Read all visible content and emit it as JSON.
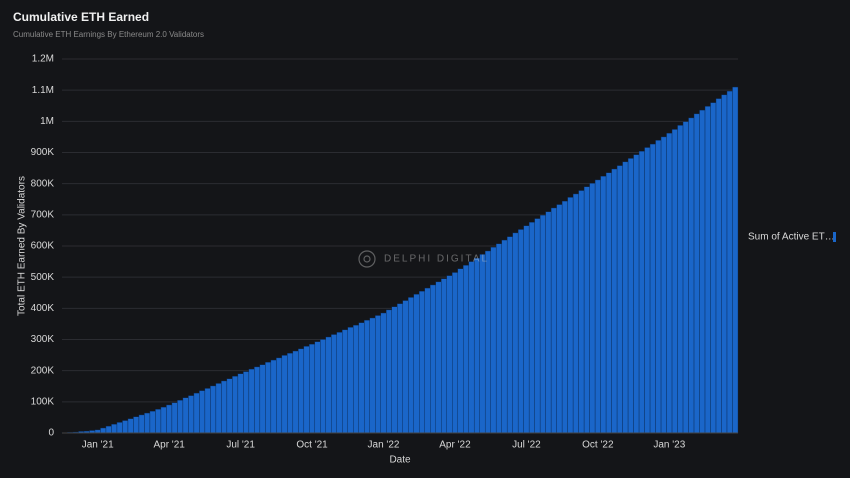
{
  "chart_data": {
    "type": "bar",
    "title": "Cumulative ETH Earned",
    "subtitle": "Cumulative ETH Earnings By Ethereum 2.0 Validators",
    "x_label": "Date",
    "y_label": "Total ETH Earned By Validators",
    "watermark": "DELPHI DIGITAL",
    "categories": [
      null,
      null,
      null,
      null,
      null,
      null,
      "Jan '21",
      null,
      null,
      null,
      null,
      null,
      null,
      null,
      null,
      null,
      null,
      null,
      null,
      "Apr '21",
      null,
      null,
      null,
      null,
      null,
      null,
      null,
      null,
      null,
      null,
      null,
      null,
      "Jul '21",
      null,
      null,
      null,
      null,
      null,
      null,
      null,
      null,
      null,
      null,
      null,
      null,
      "Oct '21",
      null,
      null,
      null,
      null,
      null,
      null,
      null,
      null,
      null,
      null,
      null,
      null,
      "Jan '22",
      null,
      null,
      null,
      null,
      null,
      null,
      null,
      null,
      null,
      null,
      null,
      null,
      "Apr '22",
      null,
      null,
      null,
      null,
      null,
      null,
      null,
      null,
      null,
      null,
      null,
      null,
      "Jul '22",
      null,
      null,
      null,
      null,
      null,
      null,
      null,
      null,
      null,
      null,
      null,
      null,
      "Oct '22",
      null,
      null,
      null,
      null,
      null,
      null,
      null,
      null,
      null,
      null,
      null,
      null,
      "Jan '23",
      null,
      null,
      null,
      null,
      null,
      null,
      null,
      null,
      null,
      null,
      null,
      null
    ],
    "series": [
      {
        "name": "Sum of Active ET…",
        "color": "#1a66c9",
        "values": [
          1000,
          2000,
          3000,
          5000,
          6000,
          8000,
          10000,
          16000,
          22000,
          28000,
          34000,
          40000,
          46000,
          52000,
          58000,
          64000,
          70000,
          76000,
          83000,
          90000,
          97000,
          105000,
          113000,
          120000,
          128000,
          136000,
          143000,
          151000,
          159000,
          167000,
          174000,
          182000,
          190000,
          197000,
          205000,
          212000,
          219000,
          227000,
          234000,
          241000,
          249000,
          256000,
          263000,
          270000,
          278000,
          285000,
          293000,
          300000,
          308000,
          316000,
          323000,
          331000,
          339000,
          346000,
          354000,
          362000,
          369000,
          377000,
          385000,
          395000,
          405000,
          415000,
          425000,
          435000,
          445000,
          455000,
          465000,
          475000,
          485000,
          495000,
          505000,
          515000,
          527000,
          538000,
          550000,
          561000,
          573000,
          584000,
          596000,
          607000,
          619000,
          630000,
          642000,
          653000,
          665000,
          676000,
          688000,
          699000,
          710000,
          722000,
          733000,
          744000,
          756000,
          767000,
          778000,
          790000,
          801000,
          812000,
          824000,
          835000,
          847000,
          858000,
          870000,
          881000,
          893000,
          904000,
          916000,
          927000,
          939000,
          950000,
          962000,
          974000,
          987000,
          999000,
          1011000,
          1024000,
          1036000,
          1048000,
          1060000,
          1073000,
          1085000,
          1097000,
          1110000
        ]
      }
    ],
    "ylim": [
      0,
      1200000
    ],
    "yticks": [
      0,
      {
        "value": 100000,
        "label": "100K"
      },
      {
        "value": 200000,
        "label": "200K"
      },
      {
        "value": 300000,
        "label": "300K"
      },
      {
        "value": 400000,
        "label": "400K"
      },
      {
        "value": 500000,
        "label": "500K"
      },
      {
        "value": 600000,
        "label": "600K"
      },
      {
        "value": 700000,
        "label": "700K"
      },
      {
        "value": 800000,
        "label": "800K"
      },
      {
        "value": 900000,
        "label": "900K"
      },
      {
        "value": 1000000,
        "label": "1M"
      },
      {
        "value": 1100000,
        "label": "1.1M"
      },
      {
        "value": 1200000,
        "label": "1.2M"
      }
    ],
    "grid": true,
    "legend": "right"
  }
}
